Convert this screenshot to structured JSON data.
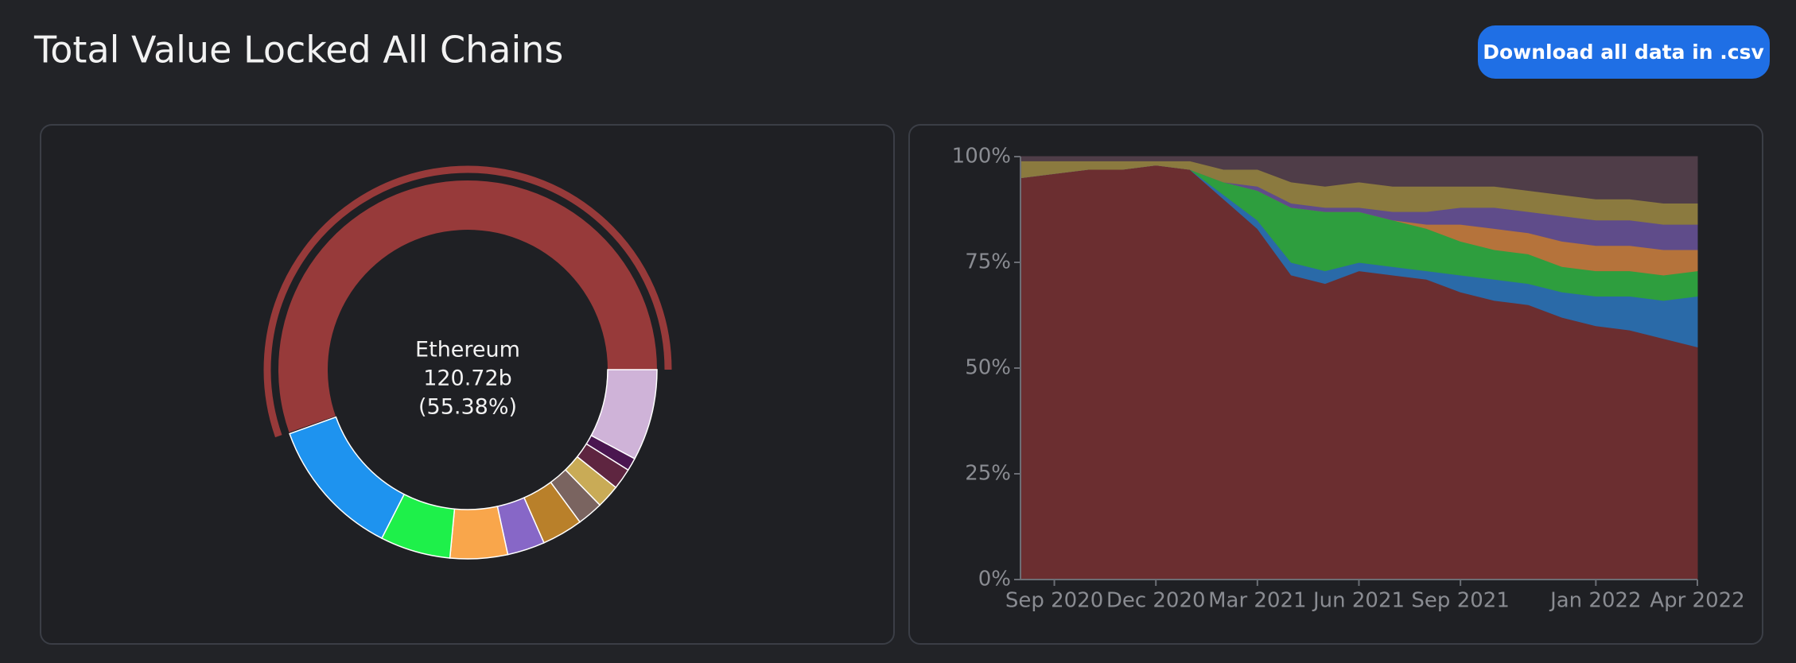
{
  "header": {
    "title": "Total Value Locked All Chains",
    "button": "Download all data in .csv"
  },
  "chart_data": [
    {
      "type": "pie",
      "categories": [
        "Ethereum",
        null,
        null,
        null,
        null,
        null,
        null,
        null,
        null,
        null,
        null
      ],
      "values": [
        55.38,
        7.8,
        1.1,
        1.8,
        2.0,
        2.2,
        3.5,
        3.2,
        4.9,
        6.0,
        12.0
      ],
      "value_labels": [
        "(55.38%)",
        null,
        null,
        null,
        null,
        null,
        null,
        null,
        null,
        null,
        null
      ],
      "colors": [
        "#973a3a",
        "#cfb3d8",
        "#4a1650",
        "#5e2540",
        "#c9ab56",
        "#7a6460",
        "#b9802a",
        "#8767c7",
        "#f9a64b",
        "#1ef04a",
        "#1e93ef"
      ],
      "highlight": {
        "value": 120.72,
        "label": "120.72b"
      }
    },
    {
      "type": "area",
      "stacked": true,
      "x": [
        "2020-08",
        "2020-09",
        "2020-10",
        "2020-11",
        "2020-12",
        "2021-01",
        "2021-02",
        "2021-03",
        "2021-04",
        "2021-05",
        "2021-06",
        "2021-07",
        "2021-08",
        "2021-09",
        "2021-10",
        "2021-11",
        "2021-12",
        "2022-01",
        "2022-02",
        "2022-03",
        "2022-04"
      ],
      "xlim": [
        "2020-08",
        "2022-04"
      ],
      "xticks": [
        {
          "value": "2020-09",
          "label": "Sep 2020"
        },
        {
          "value": "2020-12",
          "label": "Dec 2020"
        },
        {
          "value": "2021-03",
          "label": "Mar 2021"
        },
        {
          "value": "2021-06",
          "label": "Jun 2021"
        },
        {
          "value": "2021-09",
          "label": "Sep 2021"
        },
        {
          "value": "2022-01",
          "label": "Jan 2022"
        },
        {
          "value": "2022-04",
          "label": "Apr 2022"
        }
      ],
      "ylim": [
        0,
        100
      ],
      "yticks": [
        {
          "value": 0,
          "label": "0%"
        },
        {
          "value": 25,
          "label": "25%"
        },
        {
          "value": 50,
          "label": "50%"
        },
        {
          "value": 75,
          "label": "75%"
        },
        {
          "value": 100,
          "label": "100%"
        }
      ],
      "series": [
        {
          "color": "#6b2e30",
          "values": [
            95,
            96,
            97,
            97,
            98,
            97,
            90,
            83,
            72,
            70,
            73,
            72,
            71,
            68,
            66,
            65,
            62,
            60,
            59,
            57,
            55
          ]
        },
        {
          "color": "#2a6aa8",
          "values": [
            0,
            0,
            0,
            0,
            0,
            0,
            1,
            2,
            3,
            3,
            2,
            2,
            2,
            4,
            5,
            5,
            6,
            7,
            8,
            9,
            12
          ]
        },
        {
          "color": "#2e9e3e",
          "values": [
            0,
            0,
            0,
            0,
            0,
            0,
            3,
            7,
            13,
            14,
            12,
            11,
            10,
            8,
            7,
            7,
            6,
            6,
            6,
            6,
            6
          ]
        },
        {
          "color": "#b5733b",
          "values": [
            0,
            0,
            0,
            0,
            0,
            0,
            0,
            0,
            0,
            0,
            0,
            0,
            1,
            4,
            5,
            5,
            6,
            6,
            6,
            6,
            5
          ]
        },
        {
          "color": "#5f4c8a",
          "values": [
            0,
            0,
            0,
            0,
            0,
            0,
            0,
            1,
            1,
            1,
            1,
            2,
            3,
            4,
            5,
            5,
            6,
            6,
            6,
            6,
            6
          ]
        },
        {
          "color": "#8b7a3f",
          "values": [
            4,
            3,
            2,
            2,
            1,
            2,
            3,
            4,
            5,
            5,
            6,
            6,
            6,
            5,
            5,
            5,
            5,
            5,
            5,
            5,
            5
          ]
        },
        {
          "color": "#4f3d48",
          "values": [
            1,
            1,
            1,
            1,
            1,
            1,
            3,
            3,
            6,
            7,
            6,
            7,
            7,
            7,
            7,
            8,
            9,
            10,
            10,
            11,
            11
          ]
        }
      ]
    }
  ]
}
